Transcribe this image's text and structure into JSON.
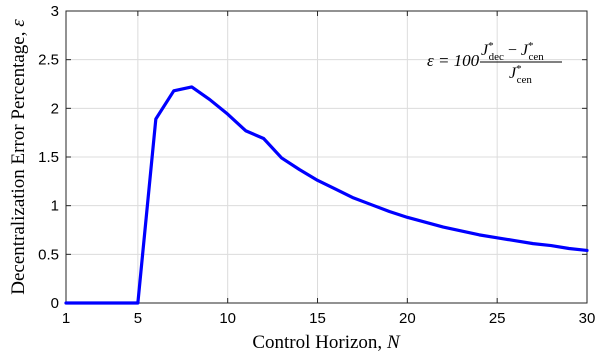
{
  "chart_data": {
    "type": "line",
    "title": "",
    "xlabel": "Control Horizon, ",
    "xlabel_symbol": "N",
    "ylabel": "Decentralization Error Percentage, ",
    "ylabel_symbol": "ε",
    "xlim": [
      1,
      30
    ],
    "ylim": [
      0,
      3
    ],
    "xticks": [
      1,
      5,
      10,
      15,
      20,
      25,
      30
    ],
    "yticks": [
      0,
      0.5,
      1,
      1.5,
      2,
      2.5,
      3
    ],
    "grid": true,
    "line_color": "#0000ff",
    "annotation": {
      "lhs": "ε = 100",
      "num_a": "J",
      "num_a_sup": "*",
      "num_a_sub": "dec",
      "minus": " − ",
      "num_b": "J",
      "num_b_sup": "*",
      "num_b_sub": "cen",
      "den": "J",
      "den_sup": "*",
      "den_sub": "cen"
    },
    "series": [
      {
        "x": [
          1,
          2,
          3,
          4,
          5,
          6,
          7,
          8,
          9,
          10,
          11,
          12,
          13,
          14,
          15,
          16,
          17,
          18,
          19,
          20,
          21,
          22,
          23,
          24,
          25,
          26,
          27,
          28,
          29,
          30
        ],
        "values": [
          0,
          0,
          0,
          0,
          0,
          1.89,
          2.18,
          2.22,
          2.09,
          1.94,
          1.77,
          1.69,
          1.49,
          1.37,
          1.26,
          1.17,
          1.08,
          1.01,
          0.94,
          0.88,
          0.83,
          0.78,
          0.74,
          0.7,
          0.67,
          0.64,
          0.61,
          0.59,
          0.56,
          0.54
        ]
      }
    ]
  }
}
